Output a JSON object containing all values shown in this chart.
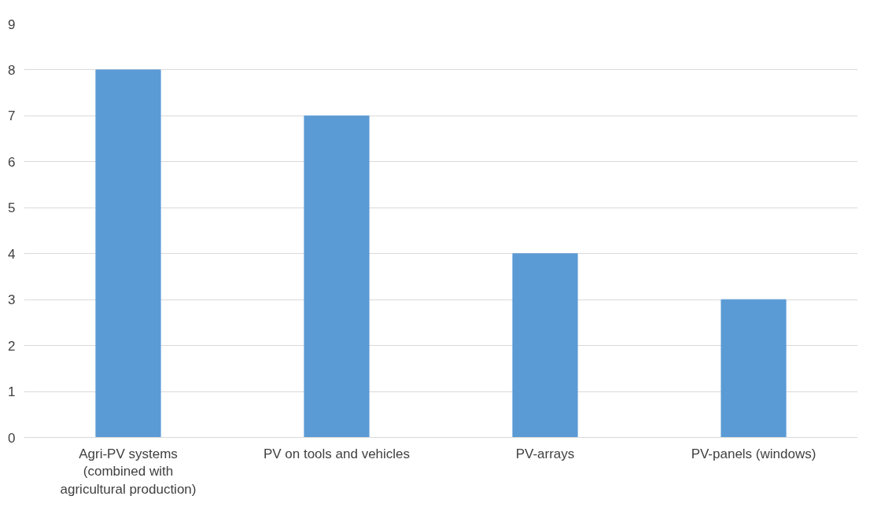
{
  "chart_data": {
    "type": "bar",
    "categories": [
      "Agri-PV systems (combined with agricultural production)",
      "PV on tools and vehicles",
      "PV-arrays",
      "PV-panels (windows)"
    ],
    "values": [
      8,
      7,
      4,
      3
    ],
    "color": "#5b9bd5",
    "ylim": [
      0,
      9
    ],
    "yticks": [
      0,
      1,
      2,
      3,
      4,
      5,
      6,
      7,
      8,
      9
    ],
    "grid": "y"
  }
}
